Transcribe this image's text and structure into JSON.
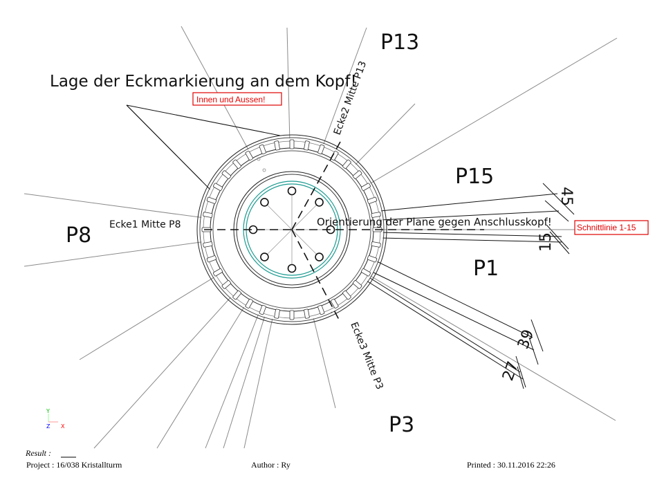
{
  "drawing": {
    "title_note": "Lage der Eckmarkierung an dem Kopf!",
    "red_note": "Innen und Aussen!",
    "section_label": "Schnittlinie 1-15",
    "orientation_note": "Orientierung der Plane gegen Anschlusskopf!",
    "corners": {
      "ecke1": "Ecke1 Mitte P8",
      "ecke2": "Ecke2 Mitte P13",
      "ecke3": "Ecke3 Mitte P3"
    },
    "points": {
      "p13": "P13",
      "p15": "P15",
      "p8": "P8",
      "p1": "P1",
      "p3": "P3"
    },
    "dimensions": {
      "d45": "45",
      "d15": "15",
      "d39": "39",
      "d27": "27"
    },
    "axes": {
      "y": "Y",
      "z": "Z",
      "x": "X"
    },
    "colors": {
      "accent_teal": "#1a9a90",
      "annotation_red": "#e00000",
      "axis_y": "#00c000",
      "axis_z": "#0000ff",
      "axis_x": "#ff0000"
    }
  },
  "footer": {
    "result": "Result :",
    "project": "Project : 16/038 Kristallturm",
    "author": "Author : Ry",
    "printed": "Printed : 30.11.2016  22:26"
  }
}
